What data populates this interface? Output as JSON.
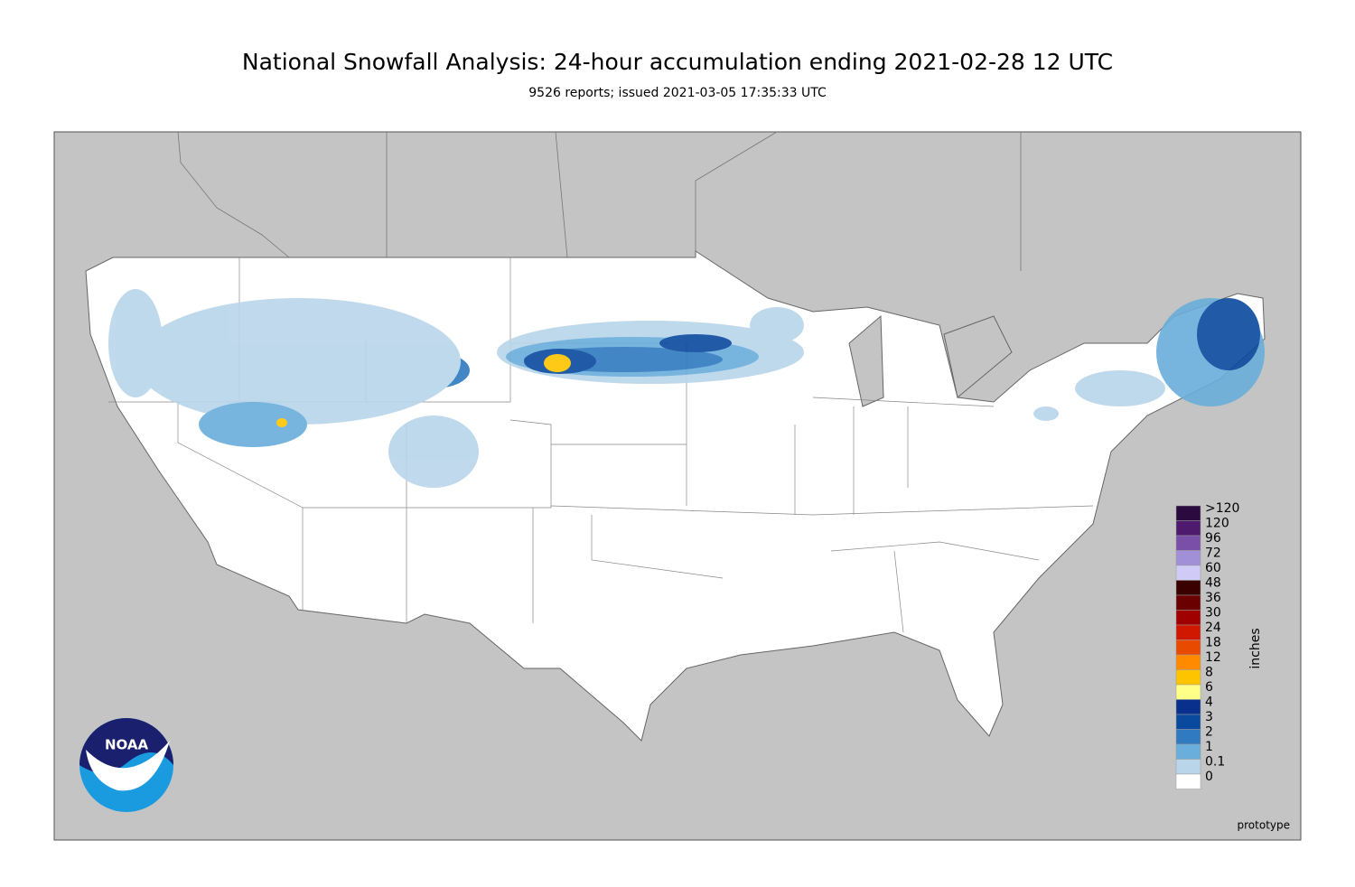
{
  "header": {
    "title": "National Snowfall Analysis: 24-hour accumulation ending 2021-02-28 12 UTC",
    "subtitle": "9526 reports; issued 2021-03-05 17:35:33 UTC"
  },
  "legend": {
    "unit": "inches",
    "items": [
      {
        "label": ">120",
        "color": "#2b0b3f"
      },
      {
        "label": "120",
        "color": "#4d1a6e"
      },
      {
        "label": "96",
        "color": "#7a4fa8"
      },
      {
        "label": "72",
        "color": "#a190d8"
      },
      {
        "label": "60",
        "color": "#cfcaf6"
      },
      {
        "label": "48",
        "color": "#3a0000"
      },
      {
        "label": "36",
        "color": "#6b0000"
      },
      {
        "label": "30",
        "color": "#a00000"
      },
      {
        "label": "24",
        "color": "#d01800"
      },
      {
        "label": "18",
        "color": "#e84a00"
      },
      {
        "label": "12",
        "color": "#ff8a00"
      },
      {
        "label": "8",
        "color": "#ffc400"
      },
      {
        "label": "6",
        "color": "#ffff88"
      },
      {
        "label": "4",
        "color": "#08308c"
      },
      {
        "label": "3",
        "color": "#0a4a9e"
      },
      {
        "label": "2",
        "color": "#2f7ac0"
      },
      {
        "label": "1",
        "color": "#6aaedb"
      },
      {
        "label": "0.1",
        "color": "#b9d5ea"
      },
      {
        "label": "0",
        "color": "#ffffff"
      }
    ]
  },
  "logo": {
    "text": "NOAA"
  },
  "footer": {
    "note": "prototype"
  }
}
